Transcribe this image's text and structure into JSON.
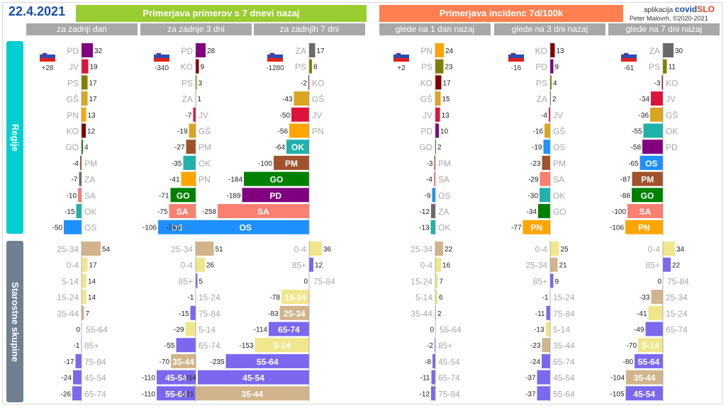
{
  "date": "22.4.2021",
  "brand": {
    "prefix": "aplikacija",
    "name1": "covid",
    "name2": "SLO",
    "credit": "Peter Malovrh, ©2020-2021"
  },
  "banners": [
    {
      "label": "Primerjava primerov s 7 dnevi nazaj",
      "color": "#9acd32"
    },
    {
      "label": "Primerjava incidenc 7d/100k",
      "color": "#ff7f50"
    }
  ],
  "column_headers": [
    "za zadnji dan",
    "za zadnje 3 dni",
    "za zadnjih 7 dni",
    "glede na 1 dan nazaj",
    "glede na 3 dni nazaj",
    "glede na 7 dni nazaj"
  ],
  "sections": [
    {
      "label": "Regije",
      "color": "#00ced1"
    },
    {
      "label": "Starostne skupine",
      "color": "#708090"
    }
  ],
  "category_colors": {
    "PD": "#800080",
    "JV": "#dc143c",
    "PS": "#808000",
    "GŠ": "#daa520",
    "PN": "#ffa500",
    "KO": "#800000",
    "GO": "#008000",
    "PM": "#a0522d",
    "ZA": "#696969",
    "SA": "#fa8072",
    "OK": "#20b2aa",
    "OS": "#1e90ff",
    "25-34": "#d2b48c",
    "0-4": "#f0e68c",
    "5-14": "#f0e68c",
    "15-24": "#f0e68c",
    "35-44": "#d2b48c",
    "55-64": "#7b68ee",
    "85+": "#7b68ee",
    "75-84": "#7b68ee",
    "45-54": "#7b68ee",
    "65-74": "#7b68ee"
  },
  "chart_data": [
    {
      "type": "bar",
      "title": "za zadnji dan",
      "group": "Primerjava primerov s 7 dnevi nazaj",
      "flag_value": "+28",
      "regions": {
        "categories": [
          "PD",
          "JV",
          "PS",
          "GŠ",
          "PN",
          "KO",
          "GO",
          "PM",
          "ZA",
          "SA",
          "OK",
          "OS"
        ],
        "values": [
          32,
          19,
          17,
          17,
          13,
          12,
          4,
          -4,
          -7,
          -10,
          -15,
          -50
        ]
      },
      "ages": {
        "categories": [
          "25-34",
          "0-4",
          "5-14",
          "15-24",
          "35-44",
          "55-64",
          "85+",
          "75-84",
          "45-54",
          "65-74"
        ],
        "values": [
          54,
          17,
          14,
          14,
          7,
          0,
          -1,
          -17,
          -24,
          -26
        ]
      }
    },
    {
      "type": "bar",
      "title": "za zadnje 3 dni",
      "group": "Primerjava primerov s 7 dnevi nazaj",
      "flag_value": "-340",
      "regions": {
        "categories": [
          "PD",
          "KO",
          "PS",
          "ZA",
          "JV",
          "GŠ",
          "PM",
          "OK",
          "PN",
          "GO",
          "SA",
          "OS"
        ],
        "values": [
          28,
          9,
          3,
          1,
          -7,
          -19,
          -27,
          -35,
          -41,
          -71,
          -75,
          -106
        ]
      },
      "ages": {
        "categories": [
          "25-34",
          "0-4",
          "85+",
          "15-24",
          "75-84",
          "5-14",
          "65-74",
          "35-44",
          "45-54",
          "55-64"
        ],
        "values": [
          51,
          26,
          5,
          -1,
          -15,
          -29,
          -55,
          -70,
          -110,
          -110
        ]
      }
    },
    {
      "type": "bar",
      "title": "za zadnjih 7 dni",
      "group": "Primerjava primerov s 7 dnevi nazaj",
      "flag_value": "-1280",
      "regions": {
        "categories": [
          "ZA",
          "PS",
          "KO",
          "GŠ",
          "JV",
          "PN",
          "OK",
          "PM",
          "GO",
          "PD",
          "SA",
          "OS"
        ],
        "values": [
          17,
          8,
          -2,
          -43,
          -50,
          -56,
          -64,
          -100,
          -184,
          -189,
          -258,
          -359
        ]
      },
      "ages": {
        "categories": [
          "0-4",
          "85+",
          "75-84",
          "15-24",
          "25-34",
          "65-74",
          "5-14",
          "55-64",
          "45-54",
          "35-44"
        ],
        "values": [
          36,
          12,
          0,
          -78,
          -83,
          -114,
          -153,
          -235,
          -314,
          -321
        ]
      }
    },
    {
      "type": "bar",
      "title": "glede na 1 dan nazaj",
      "group": "Primerjava incidenc 7d/100k",
      "flag_value": "+2",
      "regions": {
        "categories": [
          "PN",
          "PS",
          "KO",
          "GŠ",
          "JV",
          "PD",
          "GO",
          "PM",
          "SA",
          "OS",
          "ZA",
          "OK"
        ],
        "values": [
          24,
          23,
          17,
          15,
          13,
          10,
          2,
          -3,
          -4,
          -9,
          -12,
          -13
        ]
      },
      "ages": {
        "categories": [
          "25-34",
          "0-4",
          "15-24",
          "5-14",
          "35-44",
          "55-64",
          "85+",
          "45-54",
          "65-74",
          "75-84"
        ],
        "values": [
          22,
          16,
          7,
          6,
          2,
          0,
          -2,
          -8,
          -11,
          -12
        ]
      }
    },
    {
      "type": "bar",
      "title": "glede na 3 dni nazaj",
      "group": "Primerjava incidenc 7d/100k",
      "flag_value": "-16",
      "regions": {
        "categories": [
          "KO",
          "PD",
          "PS",
          "ZA",
          "JV",
          "GŠ",
          "OS",
          "PM",
          "SA",
          "OK",
          "GO",
          "PN"
        ],
        "values": [
          13,
          9,
          4,
          2,
          -4,
          -16,
          -19,
          -23,
          -29,
          -30,
          -34,
          -77
        ]
      },
      "ages": {
        "categories": [
          "0-4",
          "25-34",
          "85+",
          "15-24",
          "75-84",
          "5-14",
          "35-44",
          "65-74",
          "45-54",
          "55-64"
        ],
        "values": [
          25,
          21,
          9,
          -1,
          -11,
          -13,
          -23,
          -24,
          -37,
          -37
        ]
      }
    },
    {
      "type": "bar",
      "title": "glede na 7 dni nazaj",
      "group": "Primerjava incidenc 7d/100k",
      "flag_value": "-61",
      "regions": {
        "categories": [
          "ZA",
          "PS",
          "KO",
          "JV",
          "GŠ",
          "OK",
          "PD",
          "OS",
          "PM",
          "GO",
          "SA",
          "PN"
        ],
        "values": [
          30,
          11,
          -3,
          -34,
          -36,
          -55,
          -58,
          -65,
          -87,
          -88,
          -100,
          -106
        ]
      },
      "ages": {
        "categories": [
          "0-4",
          "85+",
          "75-84",
          "25-34",
          "15-24",
          "65-74",
          "5-14",
          "55-64",
          "35-44",
          "45-54"
        ],
        "values": [
          34,
          22,
          0,
          -33,
          -41,
          -49,
          -70,
          -80,
          -104,
          -105
        ]
      }
    }
  ]
}
